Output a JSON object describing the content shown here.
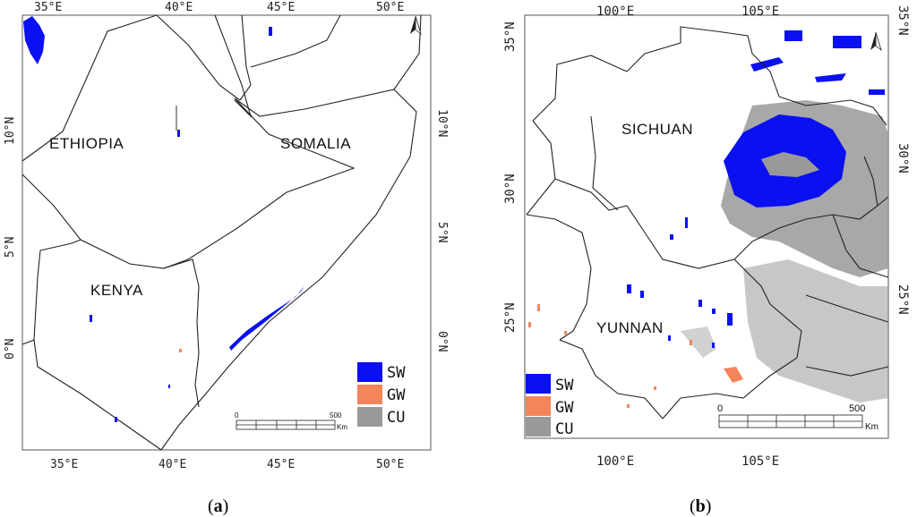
{
  "panels": [
    {
      "id": "a",
      "label_open": "(",
      "label_letter": "a",
      "label_close": ")",
      "lon_ticks": [
        "35°E",
        "40°E",
        "45°E",
        "50°E"
      ],
      "lat_ticks_left": [
        "10°N",
        "5°N",
        "0°N"
      ],
      "lat_ticks_right": [
        "10°N",
        "5°N",
        "0°N"
      ],
      "regions": [
        "ETHIOPIA",
        "SOMALIA",
        "KENYA"
      ],
      "legend": [
        "SW",
        "GW",
        "CU"
      ],
      "scale": {
        "start": "0",
        "end": "500",
        "unit": "Km"
      }
    },
    {
      "id": "b",
      "label_open": "(",
      "label_letter": "b",
      "label_close": ")",
      "lon_ticks": [
        "100°E",
        "105°E"
      ],
      "lat_ticks_left": [
        "35°N",
        "30°N",
        "25°N"
      ],
      "lat_ticks_right": [
        "35°N",
        "30°N",
        "25°N"
      ],
      "regions": [
        "SICHUAN",
        "YUNNAN"
      ],
      "legend": [
        "SW",
        "GW",
        "CU"
      ],
      "scale": {
        "start": "0",
        "end": "500",
        "unit": "Km"
      }
    }
  ],
  "colors": {
    "sw": "#0a10f0",
    "gw": "#f4845a",
    "cu": "#999999",
    "border": "#222222"
  },
  "icons": [
    "north-arrow-icon"
  ]
}
